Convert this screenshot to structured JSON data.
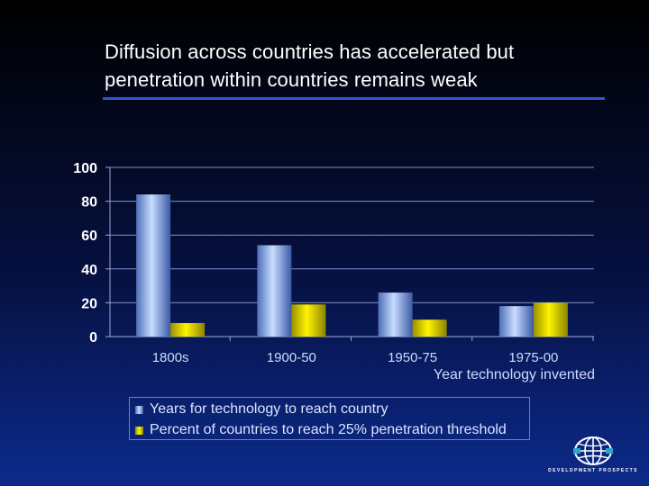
{
  "slide": {
    "title_line1": "Diffusion across countries has accelerated but",
    "title_line2": "penetration within countries remains weak"
  },
  "chart_data": {
    "type": "bar",
    "title": "",
    "xlabel": "Year technology invented",
    "ylabel": "",
    "categories": [
      "1800s",
      "1900-50",
      "1950-75",
      "1975-00"
    ],
    "ylim": [
      0,
      100
    ],
    "yticks": [
      0,
      20,
      40,
      60,
      80,
      100
    ],
    "grid": true,
    "legend_position": "bottom-left",
    "series": [
      {
        "name": "Years for technology to reach country",
        "values": [
          84,
          54,
          26,
          18
        ],
        "color": "#9ec3ff"
      },
      {
        "name": "Percent of countries to reach 25% penetration threshold",
        "values": [
          8,
          19,
          10,
          20
        ],
        "color": "#f2e600"
      }
    ]
  },
  "logo": {
    "text": "DEVELOPMENT PROSPECTS"
  },
  "colors": {
    "background_top": "#000000",
    "background_bottom": "#0c2a8a",
    "title_rule": "#3355d9",
    "text": "#ffffff",
    "axis_text": "#cfd9ff"
  }
}
